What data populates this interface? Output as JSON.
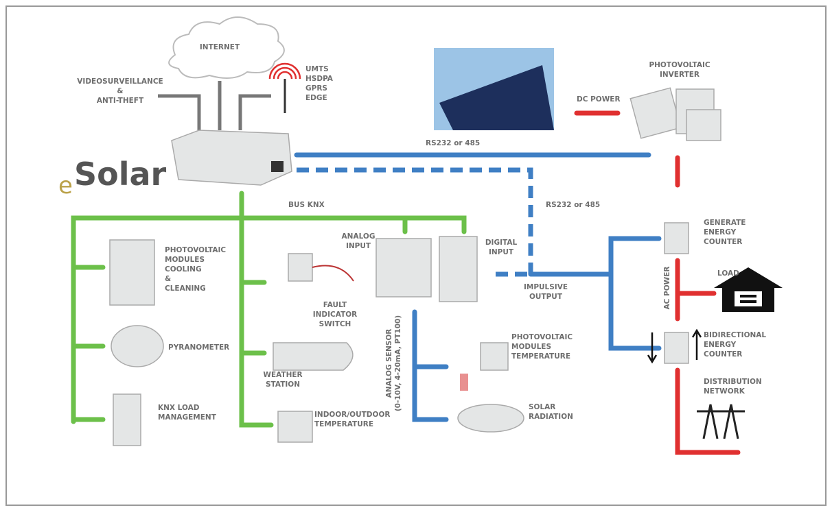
{
  "logo": {
    "prefix": "e",
    "name": "Solar"
  },
  "labels": [
    {
      "lines": [
        "INTERNET"
      ]
    },
    {
      "lines": [
        "VIDEOSURVEILLANCE",
        "&",
        "ANTI-THEFT"
      ]
    },
    {
      "lines": [
        "UMTS",
        "HSDPA",
        "GPRS",
        "EDGE"
      ]
    },
    {
      "lines": [
        "PHOTOVOLTAIC",
        "INVERTER"
      ]
    },
    {
      "lines": [
        "DC POWER"
      ]
    },
    {
      "lines": [
        "RS232 or 485"
      ]
    },
    {
      "lines": [
        "RS232 or 485"
      ]
    },
    {
      "lines": [
        "BUS KNX"
      ]
    },
    {
      "lines": [
        "ANALOG",
        "INPUT"
      ]
    },
    {
      "lines": [
        "DIGITAL",
        "INPUT"
      ]
    },
    {
      "lines": [
        "PHOTOVOLTAIC",
        "MODULES",
        "COOLING",
        "&",
        "CLEANING"
      ]
    },
    {
      "lines": [
        "FAULT",
        "INDICATOR",
        "SWITCH"
      ]
    },
    {
      "lines": [
        "IMPULSIVE",
        "OUTPUT"
      ]
    },
    {
      "lines": [
        "GENERATE",
        "ENERGY",
        "COUNTER"
      ]
    },
    {
      "lines": [
        "LOAD"
      ]
    },
    {
      "lines": [
        "AC POWER"
      ]
    },
    {
      "lines": [
        "BIDIRECTIONAL",
        "ENERGY",
        "COUNTER"
      ]
    },
    {
      "lines": [
        "DISTRIBUTION",
        "NETWORK"
      ]
    },
    {
      "lines": [
        "PYRANOMETER"
      ]
    },
    {
      "lines": [
        "WEATHER",
        "STATION"
      ]
    },
    {
      "lines": [
        "ANALOG SENSOR",
        "(0-10V, 4-20mA, PT100)"
      ]
    },
    {
      "lines": [
        "PHOTOVOLTAIC",
        "MODULES",
        "TEMPERATURE"
      ]
    },
    {
      "lines": [
        "KNX LOAD",
        "MANAGEMENT"
      ]
    },
    {
      "lines": [
        "INDOOR/OUTDOOR",
        "TEMPERATURE"
      ]
    },
    {
      "lines": [
        "SOLAR",
        "RADIATION"
      ]
    }
  ]
}
